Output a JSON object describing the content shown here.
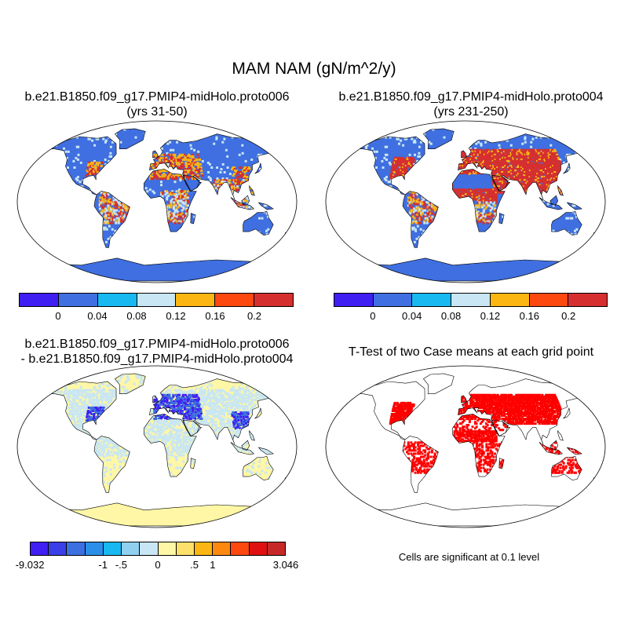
{
  "main_title": "MAM NAM (gN/m^2/y)",
  "panels": {
    "top_left": {
      "title_line1": "b.e21.B1850.f09_g17.PMIP4-midHolo.proto006",
      "title_line2": "(yrs 31-50)"
    },
    "top_right": {
      "title_line1": "b.e21.B1850.f09_g17.PMIP4-midHolo.proto004",
      "title_line2": "(yrs 231-250)"
    },
    "bottom_left": {
      "title_line1": "b.e21.B1850.f09_g17.PMIP4-midHolo.proto006",
      "title_line2": "- b.e21.B1850.f09_g17.PMIP4-midHolo.proto004"
    },
    "bottom_right": {
      "title": "T-Test of two Case means at each grid point",
      "note": "Cells are significant at 0.1 level"
    }
  },
  "colorbar_top": {
    "colors": [
      "#3f1ff2",
      "#3f6fe0",
      "#18b8f0",
      "#c8e6f4",
      "#fcb613",
      "#fd4810",
      "#d62f2f"
    ],
    "labels": [
      "0",
      "0.04",
      "0.08",
      "0.12",
      "0.16",
      "0.2"
    ]
  },
  "colorbar_diff": {
    "colors": [
      "#3f1ff2",
      "#3b3fe8",
      "#3c6fe0",
      "#2a8fe8",
      "#18b8f0",
      "#8fd0ee",
      "#c8e6f4",
      "#fff7a6",
      "#fde06a",
      "#fcb613",
      "#fd8810",
      "#fd4810",
      "#e01010",
      "#c62828"
    ],
    "labels": [
      "-9.032",
      "-1",
      "-.5",
      "0",
      ".5",
      "1",
      "3.046"
    ]
  },
  "map_colors": {
    "ocean": "#ffffff",
    "top_land_base": "#3f6fe0",
    "top_land_mid": "#c8e6f4",
    "top_land_high": "#d62f2f",
    "top_land_orange": "#fcb613",
    "diff_land_base": "#fff7a6",
    "diff_land_light": "#c8e6f4",
    "diff_land_neg": "#3f1ff2",
    "diff_land_neg2": "#3c6fe0",
    "sig_color": "#ff0000"
  }
}
